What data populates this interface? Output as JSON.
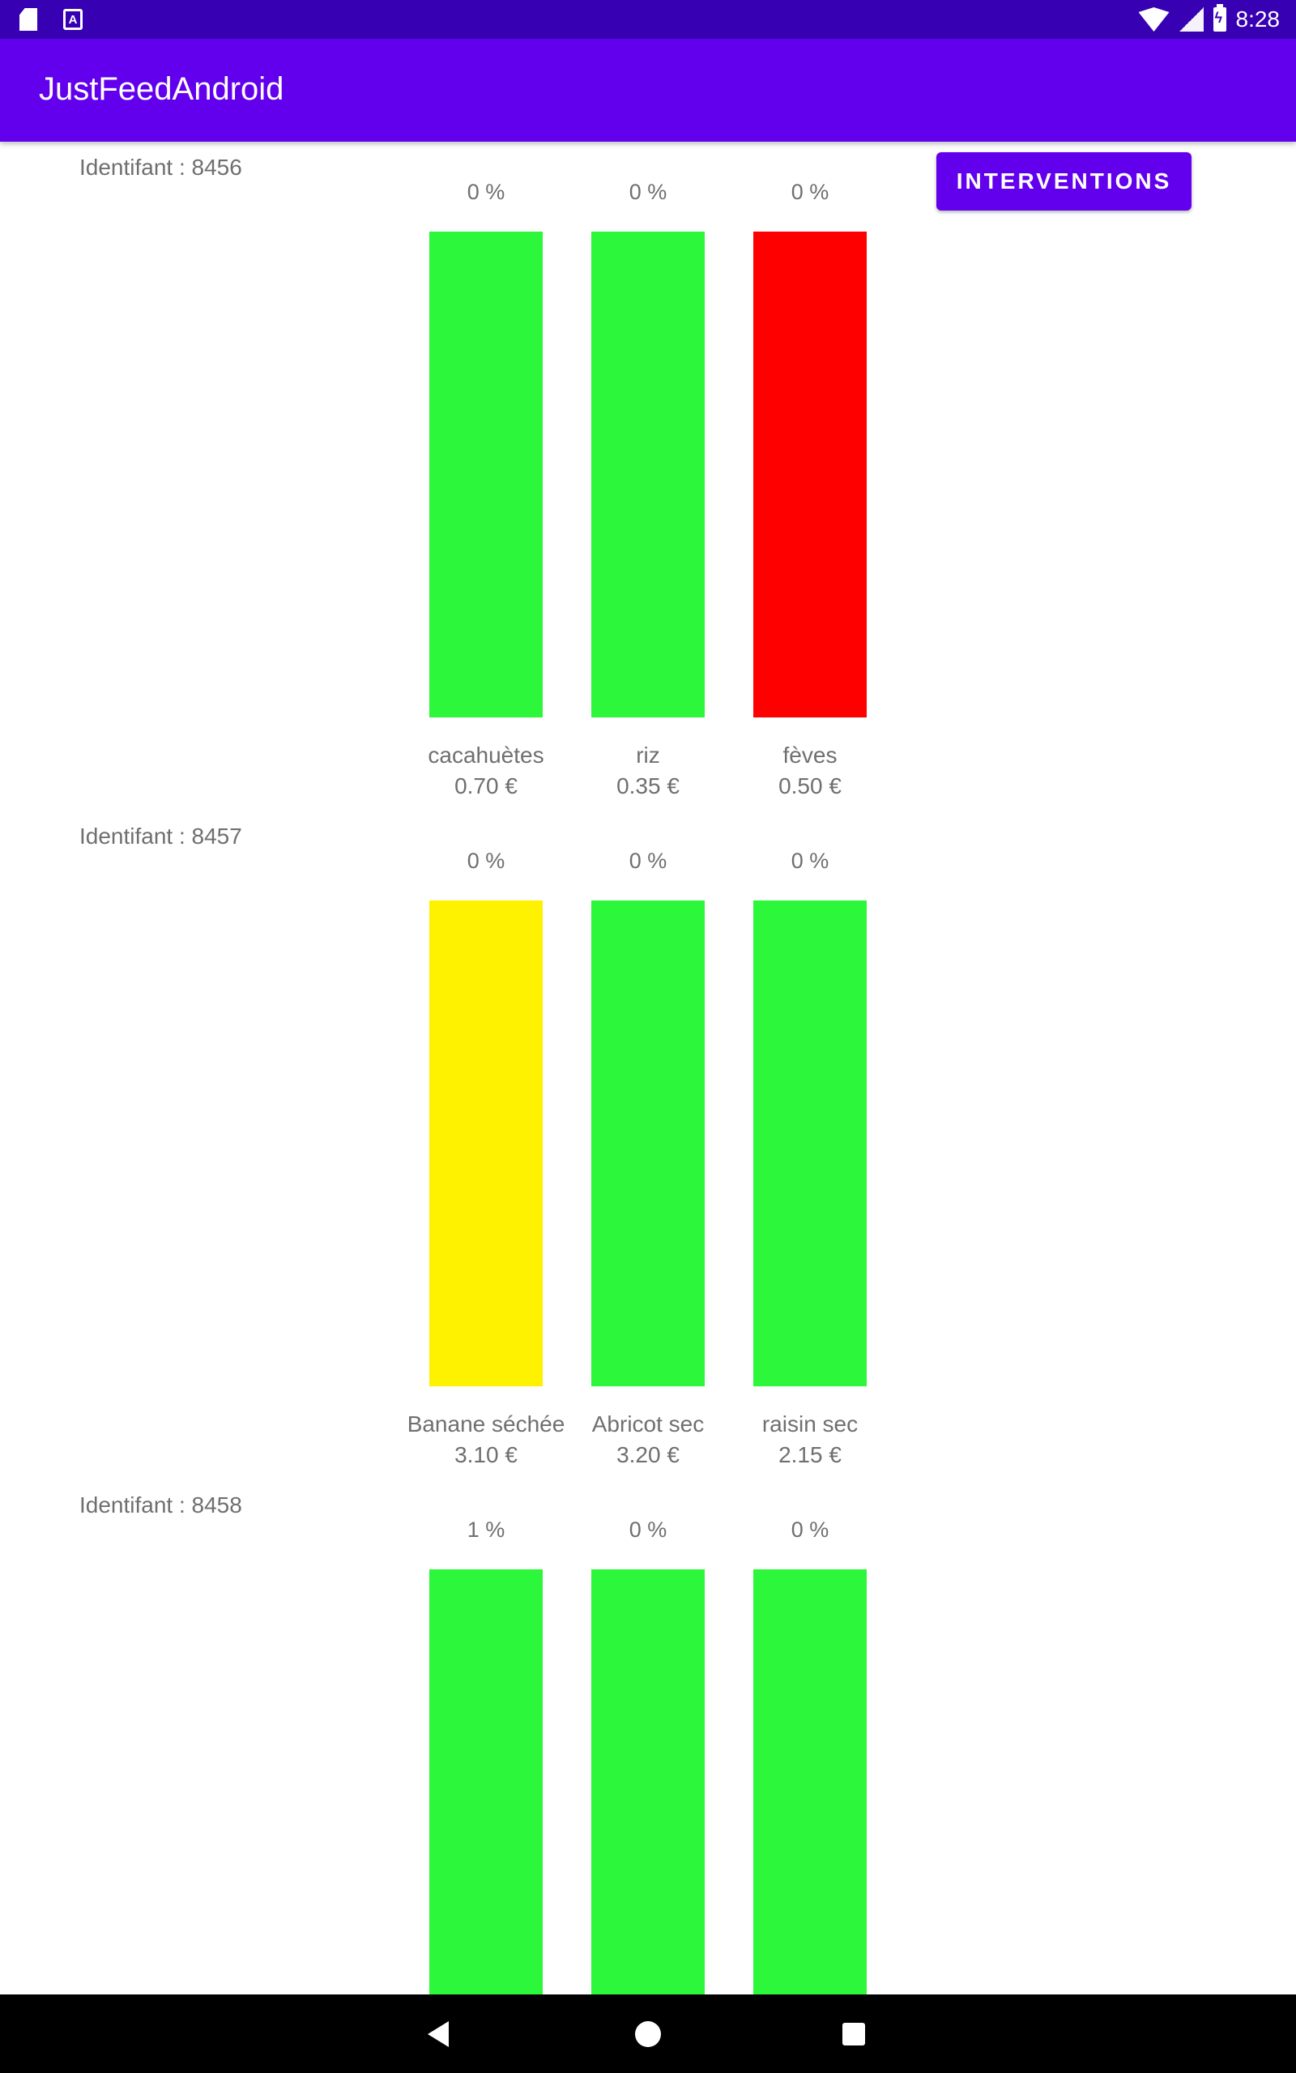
{
  "status_bar": {
    "time": "8:28",
    "sd_icon_letter": "",
    "a_icon_letter": "A"
  },
  "app_bar": {
    "title": "JustFeedAndroid"
  },
  "interventions_button": {
    "label": "INTERVENTIONS"
  },
  "products": [
    {
      "identifiant": "Identifant : 8456",
      "items": [
        {
          "name": "cacahuètes",
          "price": "0.70 €",
          "percent": "0 %",
          "color": "#2df73a"
        },
        {
          "name": "riz",
          "price": "0.35 €",
          "percent": "0 %",
          "color": "#2df73a"
        },
        {
          "name": "fèves",
          "price": "0.50 €",
          "percent": "0 %",
          "color": "#ff0000"
        }
      ]
    },
    {
      "identifiant": "Identifant : 8457",
      "items": [
        {
          "name": "Banane séchée",
          "price": "3.10 €",
          "percent": "0 %",
          "color": "#fff200"
        },
        {
          "name": "Abricot sec",
          "price": "3.20 €",
          "percent": "0 %",
          "color": "#2df73a"
        },
        {
          "name": "raisin sec",
          "price": "2.15 €",
          "percent": "0 %",
          "color": "#2df73a"
        }
      ]
    },
    {
      "identifiant": "Identifant : 8458",
      "items": [
        {
          "name": "",
          "price": "",
          "percent": "1 %",
          "color": "#2df73a"
        },
        {
          "name": "",
          "price": "",
          "percent": "0 %",
          "color": "#2df73a"
        },
        {
          "name": "",
          "price": "",
          "percent": "0 %",
          "color": "#2df73a"
        }
      ]
    }
  ],
  "nav_bar": {
    "back_icon": "back-triangle-icon",
    "home_icon": "home-circle-icon",
    "recents_icon": "recents-square-icon"
  }
}
